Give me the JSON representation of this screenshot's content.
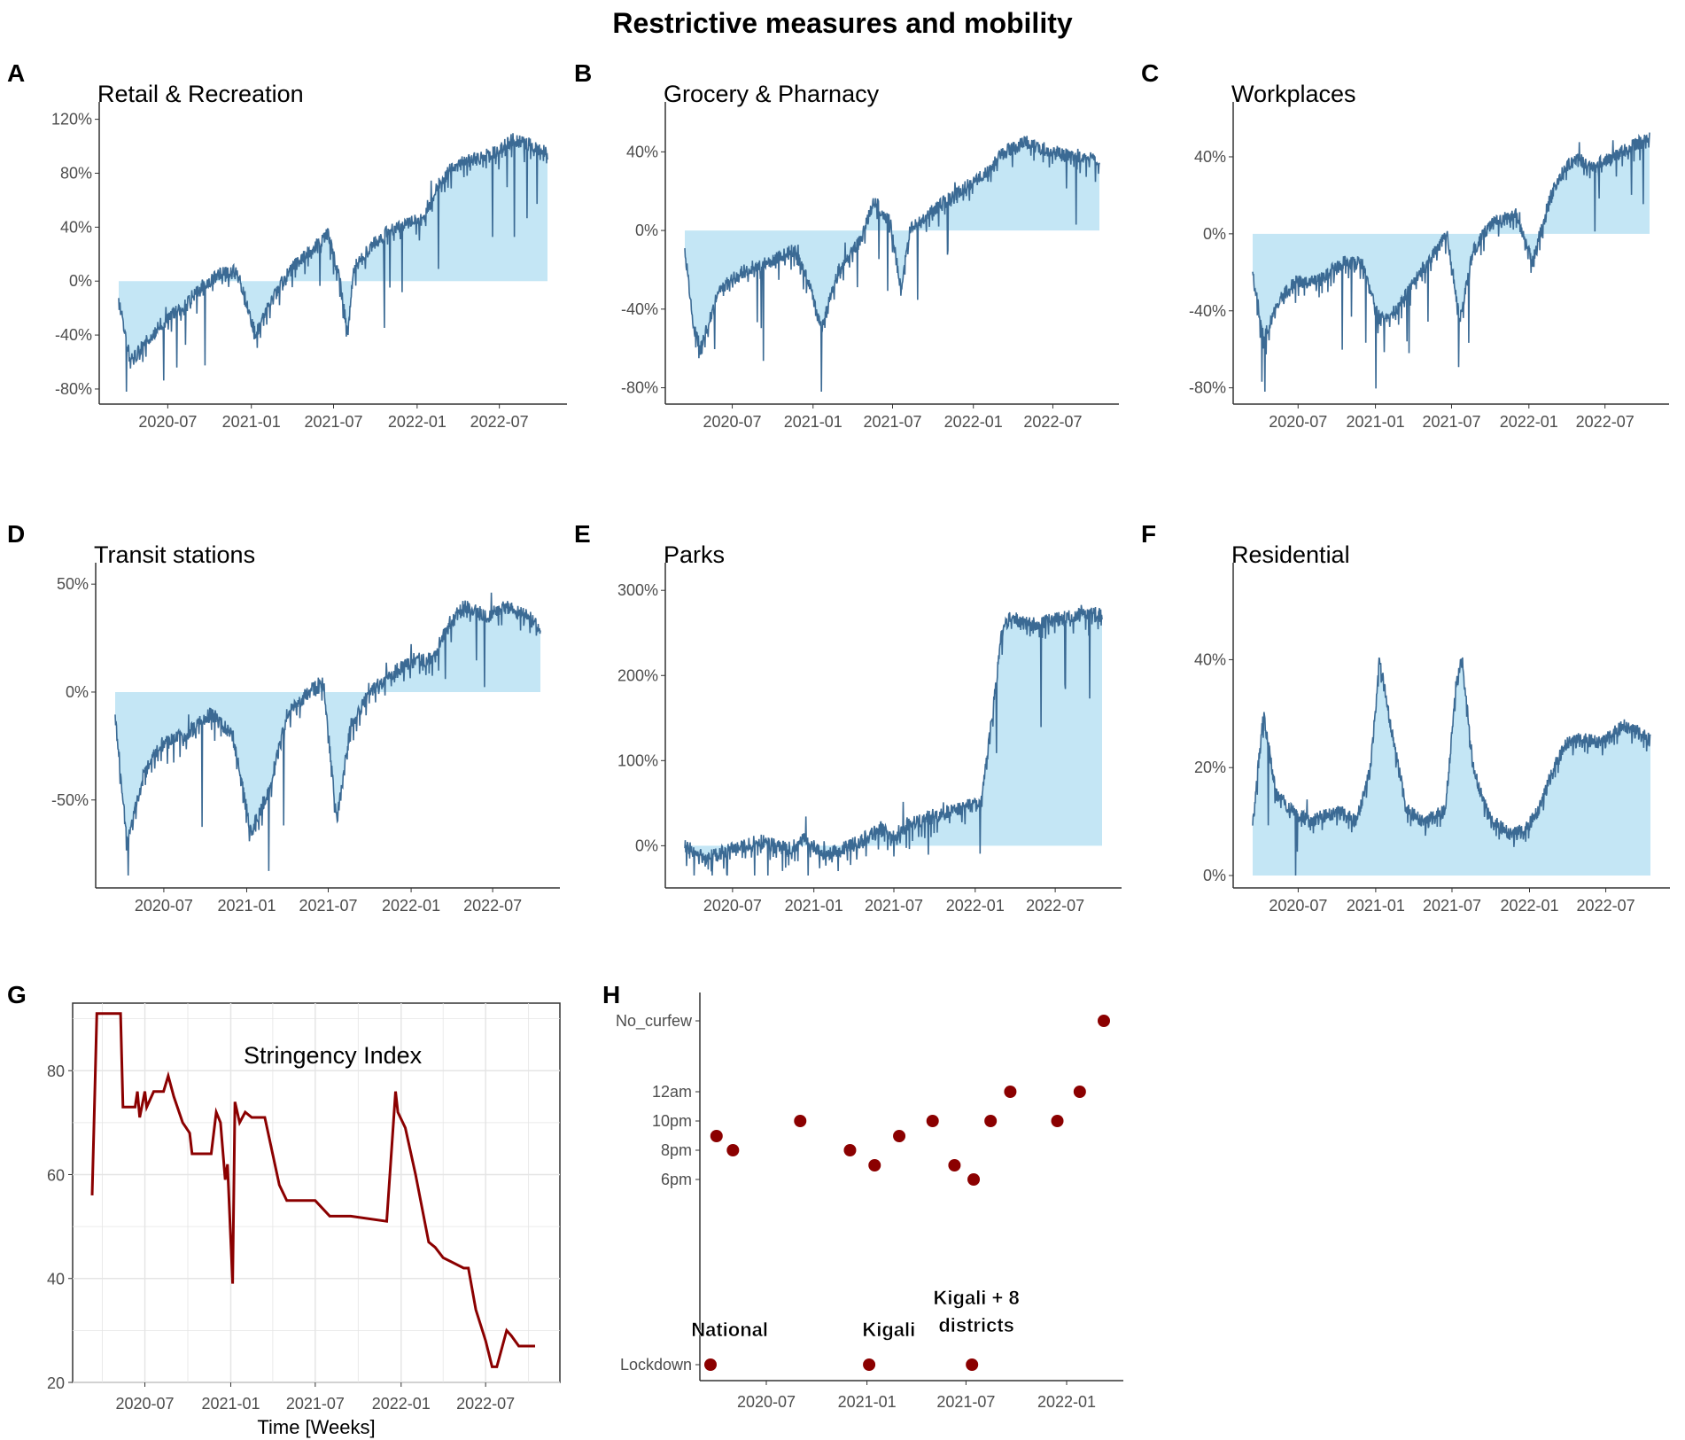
{
  "figure": {
    "title": "Restrictive measures and mobility"
  },
  "colors": {
    "line": "#3b6a94",
    "fill": "#c4e6f5",
    "stringency": "#8b0000",
    "grid": "#e5e5e5",
    "axis": "#333333"
  },
  "x_ticks": [
    "2020-07",
    "2021-01",
    "2021-07",
    "2022-01",
    "2022-07"
  ],
  "chart_data": [
    {
      "type": "area",
      "id": "A",
      "panel_label": "A",
      "title": "Retail & Recreation",
      "x": [
        "2020-03-15",
        "2020-04-10",
        "2020-05-15",
        "2020-06-20",
        "2020-08-01",
        "2020-09-10",
        "2020-10-20",
        "2020-12-01",
        "2021-01-10",
        "2021-02-20",
        "2021-04-01",
        "2021-05-20",
        "2021-06-20",
        "2021-07-15",
        "2021-08-01",
        "2021-08-15",
        "2021-10-01",
        "2021-11-15",
        "2021-12-20",
        "2022-01-15",
        "2022-02-15",
        "2022-03-20",
        "2022-05-01",
        "2022-06-15",
        "2022-08-01",
        "2022-09-15",
        "2022-10-15"
      ],
      "y": [
        -15,
        -60,
        -45,
        -30,
        -20,
        -5,
        5,
        8,
        -40,
        -10,
        10,
        25,
        35,
        0,
        -40,
        10,
        30,
        40,
        45,
        45,
        70,
        85,
        90,
        95,
        105,
        100,
        95
      ],
      "yticks": [
        -80,
        -40,
        0,
        40,
        80,
        120
      ],
      "ylim": [
        -82,
        125
      ],
      "ytick_format": "%"
    },
    {
      "type": "area",
      "id": "B",
      "panel_label": "B",
      "title": "Grocery & Pharnacy",
      "x": [
        "2020-03-15",
        "2020-04-05",
        "2020-04-20",
        "2020-06-01",
        "2020-08-01",
        "2020-10-01",
        "2020-11-20",
        "2020-12-20",
        "2021-01-20",
        "2021-03-01",
        "2021-04-20",
        "2021-05-20",
        "2021-06-25",
        "2021-07-20",
        "2021-08-10",
        "2021-10-01",
        "2021-12-01",
        "2022-01-01",
        "2022-02-01",
        "2022-03-10",
        "2022-05-01",
        "2022-07-01",
        "2022-09-01",
        "2022-10-15"
      ],
      "y": [
        -10,
        -50,
        -60,
        -30,
        -20,
        -15,
        -10,
        -25,
        -50,
        -20,
        -5,
        15,
        5,
        -30,
        0,
        10,
        20,
        25,
        30,
        40,
        45,
        40,
        38,
        35
      ],
      "yticks": [
        -80,
        -40,
        0,
        40
      ],
      "ylim": [
        -82,
        60
      ],
      "ytick_format": "%"
    },
    {
      "type": "area",
      "id": "C",
      "panel_label": "C",
      "title": "Workplaces",
      "x": [
        "2020-03-15",
        "2020-04-10",
        "2020-05-15",
        "2020-06-20",
        "2020-08-15",
        "2020-10-15",
        "2020-12-01",
        "2021-01-10",
        "2021-02-20",
        "2021-04-01",
        "2021-05-20",
        "2021-06-20",
        "2021-07-20",
        "2021-08-20",
        "2021-10-01",
        "2021-12-01",
        "2022-01-10",
        "2022-02-15",
        "2022-03-15",
        "2022-04-20",
        "2022-06-01",
        "2022-07-20",
        "2022-09-01",
        "2022-10-15"
      ],
      "y": [
        -20,
        -55,
        -35,
        -25,
        -25,
        -15,
        -15,
        -45,
        -40,
        -25,
        -10,
        0,
        -45,
        -10,
        5,
        10,
        -15,
        15,
        30,
        40,
        35,
        40,
        45,
        50
      ],
      "yticks": [
        -80,
        -40,
        0,
        40
      ],
      "ylim": [
        -82,
        63
      ],
      "ytick_format": "%"
    },
    {
      "type": "area",
      "id": "D",
      "panel_label": "D",
      "title": "Transit stations",
      "x": [
        "2020-03-15",
        "2020-04-10",
        "2020-05-15",
        "2020-06-20",
        "2020-08-15",
        "2020-10-15",
        "2020-12-01",
        "2021-01-10",
        "2021-02-20",
        "2021-04-01",
        "2021-05-20",
        "2021-06-20",
        "2021-07-20",
        "2021-08-20",
        "2021-10-01",
        "2021-12-01",
        "2022-01-10",
        "2022-02-20",
        "2022-03-20",
        "2022-05-01",
        "2022-06-15",
        "2022-08-01",
        "2022-09-15",
        "2022-10-15"
      ],
      "y": [
        -10,
        -70,
        -40,
        -25,
        -20,
        -10,
        -20,
        -65,
        -45,
        -10,
        0,
        5,
        -60,
        -15,
        0,
        10,
        15,
        15,
        30,
        40,
        35,
        40,
        35,
        30
      ],
      "yticks": [
        -50,
        0,
        50
      ],
      "ylim": [
        -85,
        55
      ],
      "ytick_format": "%"
    },
    {
      "type": "area",
      "id": "E",
      "panel_label": "E",
      "title": "Parks",
      "x": [
        "2020-03-15",
        "2020-05-01",
        "2020-07-01",
        "2020-09-01",
        "2020-11-01",
        "2020-12-15",
        "2021-01-15",
        "2021-03-01",
        "2021-04-15",
        "2021-06-01",
        "2021-07-01",
        "2021-08-01",
        "2021-10-01",
        "2021-12-01",
        "2022-01-15",
        "2022-02-15",
        "2022-03-01",
        "2022-03-20",
        "2022-05-01",
        "2022-07-01",
        "2022-09-01",
        "2022-10-15"
      ],
      "y": [
        0,
        -15,
        -5,
        5,
        -5,
        10,
        -10,
        -5,
        5,
        20,
        10,
        25,
        35,
        45,
        50,
        180,
        250,
        270,
        260,
        265,
        275,
        270
      ],
      "yticks": [
        0,
        100,
        200,
        300
      ],
      "ylim": [
        -35,
        320
      ],
      "ytick_format": "%"
    },
    {
      "type": "area",
      "id": "F",
      "panel_label": "F",
      "title": "Residential",
      "x": [
        "2020-03-15",
        "2020-04-10",
        "2020-05-10",
        "2020-06-15",
        "2020-08-01",
        "2020-10-01",
        "2020-11-15",
        "2020-12-20",
        "2021-01-10",
        "2021-02-01",
        "2021-03-15",
        "2021-05-01",
        "2021-06-15",
        "2021-07-10",
        "2021-07-25",
        "2021-08-20",
        "2021-10-01",
        "2021-11-15",
        "2021-12-20",
        "2022-01-20",
        "2022-03-01",
        "2022-04-01",
        "2022-05-15",
        "2022-07-01",
        "2022-08-15",
        "2022-10-15"
      ],
      "y": [
        10,
        30,
        15,
        12,
        10,
        12,
        10,
        20,
        40,
        30,
        12,
        10,
        12,
        35,
        40,
        20,
        10,
        8,
        8,
        12,
        20,
        25,
        25,
        25,
        28,
        25
      ],
      "yticks": [
        0,
        20,
        40
      ],
      "ylim": [
        0,
        56
      ],
      "ytick_format": "%"
    },
    {
      "type": "line",
      "id": "G",
      "panel_label": "G",
      "title": "Stringency Index",
      "xlabel": "Time [Weeks]",
      "x": [
        "2020-03-10",
        "2020-03-15",
        "2020-03-20",
        "2020-05-10",
        "2020-05-15",
        "2020-06-10",
        "2020-06-15",
        "2020-06-20",
        "2020-07-01",
        "2020-07-05",
        "2020-07-20",
        "2020-08-10",
        "2020-08-20",
        "2020-09-01",
        "2020-09-20",
        "2020-10-05",
        "2020-10-10",
        "2020-11-20",
        "2020-12-01",
        "2020-12-10",
        "2020-12-20",
        "2020-12-25",
        "2021-01-05",
        "2021-01-10",
        "2021-01-20",
        "2021-02-01",
        "2021-02-15",
        "2021-03-15",
        "2021-04-15",
        "2021-05-01",
        "2021-07-01",
        "2021-08-01",
        "2021-09-15",
        "2021-12-01",
        "2021-12-20",
        "2021-12-25",
        "2022-01-10",
        "2022-02-01",
        "2022-03-01",
        "2022-03-15",
        "2022-04-01",
        "2022-05-15",
        "2022-05-25",
        "2022-06-10",
        "2022-07-01",
        "2022-07-15",
        "2022-07-25",
        "2022-08-15",
        "2022-08-25",
        "2022-09-10",
        "2022-09-15",
        "2022-10-15"
      ],
      "y": [
        56,
        73,
        91,
        91,
        73,
        73,
        76,
        71,
        76,
        73,
        76,
        76,
        79,
        75,
        70,
        68,
        64,
        64,
        72,
        70,
        59,
        62,
        39,
        74,
        70,
        72,
        71,
        71,
        58,
        55,
        55,
        52,
        52,
        51,
        76,
        72,
        69,
        60,
        47,
        46,
        44,
        42,
        42,
        34,
        28,
        23,
        23,
        30,
        29,
        27,
        27,
        27
      ],
      "yticks": [
        20,
        40,
        60,
        80
      ],
      "ylim": [
        20,
        93
      ]
    },
    {
      "type": "scatter",
      "id": "H",
      "panel_label": "H",
      "categories": [
        "Lockdown",
        "6pm",
        "8pm",
        "10pm",
        "12am",
        "No_curfew"
      ],
      "points": [
        {
          "x": "2020-03-21",
          "y": "Lockdown"
        },
        {
          "x": "2020-04-01",
          "y": "9pm"
        },
        {
          "x": "2020-05-01",
          "y": "8pm"
        },
        {
          "x": "2020-09-01",
          "y": "10pm"
        },
        {
          "x": "2020-12-01",
          "y": "8pm"
        },
        {
          "x": "2021-01-05",
          "y": "Lockdown"
        },
        {
          "x": "2021-01-15",
          "y": "7pm"
        },
        {
          "x": "2021-03-01",
          "y": "9pm"
        },
        {
          "x": "2021-05-01",
          "y": "10pm"
        },
        {
          "x": "2021-06-10",
          "y": "7pm"
        },
        {
          "x": "2021-07-12",
          "y": "Lockdown"
        },
        {
          "x": "2021-07-15",
          "y": "6pm"
        },
        {
          "x": "2021-08-15",
          "y": "10pm"
        },
        {
          "x": "2021-09-20",
          "y": "12am"
        },
        {
          "x": "2021-12-15",
          "y": "10pm"
        },
        {
          "x": "2022-01-25",
          "y": "12am"
        },
        {
          "x": "2022-03-10",
          "y": "No_curfew"
        }
      ],
      "annotations": [
        {
          "text": "National",
          "x": "2020-04-25",
          "y": "lower"
        },
        {
          "text": "Kigali",
          "x": "2021-02-10",
          "y": "lower"
        },
        {
          "text": "Kigali + 8",
          "x": "2021-07-20",
          "y": "upper"
        },
        {
          "text": "districts",
          "x": "2021-07-20",
          "y": "middle"
        }
      ],
      "x_ticks": [
        "2020-07",
        "2021-01",
        "2021-07",
        "2022-01"
      ]
    }
  ]
}
